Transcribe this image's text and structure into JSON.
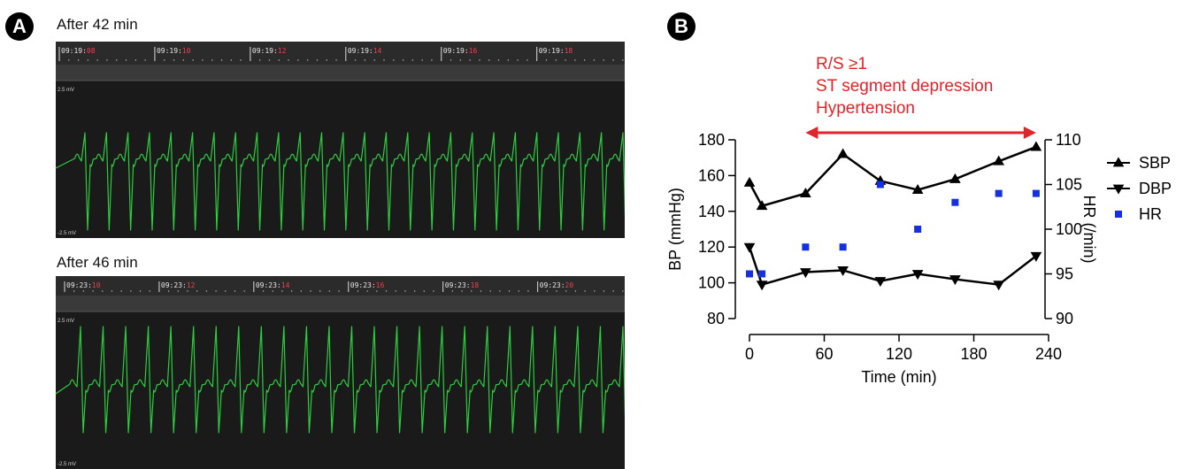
{
  "panelA": {
    "badge": "A",
    "strip1": {
      "title": "After 42 min",
      "hm": "09:19:",
      "seconds": [
        "08",
        "10",
        "12",
        "14",
        "16",
        "18"
      ],
      "top_label": "2.5 mV",
      "bottom_label": "-2.5 mV",
      "beats": 25
    },
    "strip2": {
      "title": "After 46 min",
      "hm": "09:23:",
      "seconds": [
        "10",
        "12",
        "14",
        "16",
        "18",
        "20"
      ],
      "top_label": "2.5 mV",
      "bottom_label": "-2.5 mV",
      "beats": 24
    },
    "colors": {
      "trace": "#2ecc40",
      "seconds_text": "#e8424d",
      "bg": "#1a1a1a"
    }
  },
  "panelB": {
    "badge": "B",
    "annotation_lines": [
      "R/S ≥1",
      "ST segment depression",
      "Hypertension"
    ],
    "annotation_color": "#e0242b",
    "arrow_range_x": [
      45,
      230
    ]
  },
  "chart_data": {
    "type": "line",
    "xlabel": "Time (min)",
    "ylabel": "BP (mmHg)",
    "y2label": "HR (/min)",
    "x_ticks": [
      0,
      60,
      120,
      180,
      240
    ],
    "y_ticks": [
      80,
      100,
      120,
      140,
      160,
      180
    ],
    "y2_ticks": [
      90,
      95,
      100,
      105,
      110
    ],
    "xlim": [
      0,
      240
    ],
    "ylim": [
      80,
      180
    ],
    "y2lim": [
      90,
      110
    ],
    "legend_position": "right",
    "series": [
      {
        "name": "SBP",
        "axis": "left",
        "marker": "triangle-up",
        "color": "#000000",
        "x": [
          0,
          10,
          45,
          75,
          105,
          135,
          165,
          200,
          230
        ],
        "y": [
          156,
          143,
          150,
          172,
          157,
          152,
          158,
          168,
          176
        ]
      },
      {
        "name": "DBP",
        "axis": "left",
        "marker": "triangle-down",
        "color": "#000000",
        "x": [
          0,
          10,
          45,
          75,
          105,
          135,
          165,
          200,
          230
        ],
        "y": [
          120,
          99,
          106,
          107,
          101,
          105,
          102,
          99,
          115
        ]
      },
      {
        "name": "HR",
        "axis": "right",
        "marker": "square",
        "color": "#1530e0",
        "x": [
          0,
          10,
          45,
          75,
          105,
          135,
          165,
          200,
          230
        ],
        "y": [
          95,
          95,
          98,
          98,
          105,
          100,
          103,
          104,
          104
        ]
      }
    ]
  }
}
